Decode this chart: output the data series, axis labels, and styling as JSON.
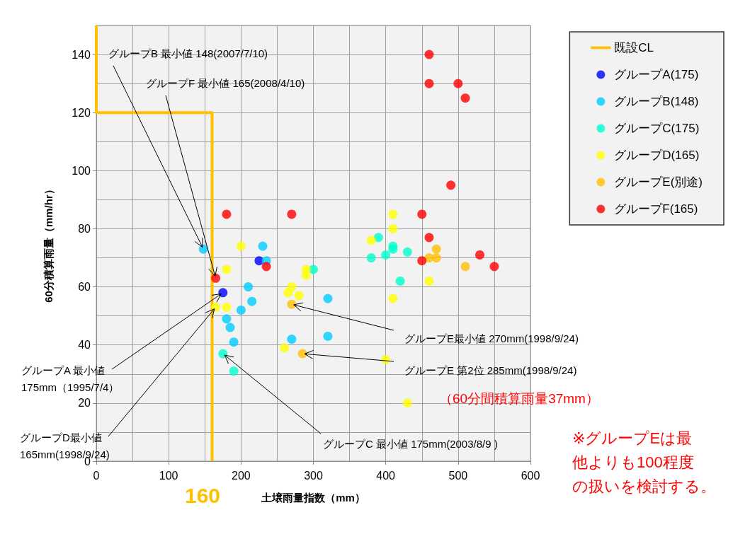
{
  "chart_data": {
    "type": "scatter",
    "xlabel": "土壌雨量指数（mm）",
    "ylabel": "60分積算雨量（mm/hr）",
    "xlim": [
      0,
      600
    ],
    "ylim": [
      0,
      150
    ],
    "xticks": [
      0,
      100,
      200,
      300,
      400,
      500,
      600
    ],
    "yticks": [
      0,
      20,
      40,
      60,
      80,
      100,
      120,
      140
    ],
    "grid": true,
    "legend": "right",
    "marker": "circle",
    "series": [
      {
        "name": "既設CL",
        "type": "line",
        "color": "#ffc000",
        "marker": "none",
        "line_style": "solid",
        "x": [
          0,
          0,
          160,
          160
        ],
        "values": [
          150,
          120,
          120,
          0
        ]
      },
      {
        "name": "グループA(175)",
        "color": "#0000ff",
        "x": [
          175,
          225
        ],
        "values": [
          58,
          69
        ]
      },
      {
        "name": "グループB(148)",
        "color": "#00ccff",
        "x": [
          148,
          230,
          235,
          210,
          215,
          200,
          180,
          185,
          190,
          270,
          320,
          320
        ],
        "values": [
          73,
          74,
          69,
          60,
          55,
          52,
          49,
          46,
          41,
          42,
          56,
          43
        ]
      },
      {
        "name": "グループC(175)",
        "color": "#00ffcc",
        "x": [
          175,
          190,
          300,
          390,
          380,
          400,
          410,
          410,
          430,
          420
        ],
        "values": [
          37,
          31,
          66,
          77,
          70,
          71,
          74,
          73,
          72,
          62
        ]
      },
      {
        "name": "グループD(165)",
        "color": "#ffff00",
        "x": [
          165,
          180,
          180,
          200,
          290,
          290,
          270,
          265,
          280,
          260,
          410,
          410,
          380,
          460,
          410,
          400,
          430
        ],
        "values": [
          53,
          66,
          53,
          74,
          66,
          64,
          60,
          58,
          57,
          39,
          85,
          80,
          76,
          62,
          56,
          35,
          20
        ]
      },
      {
        "name": "グループE(別途)",
        "color": "#ffc000",
        "x": [
          270,
          285,
          460,
          470,
          470,
          510
        ],
        "values": [
          54,
          37,
          70,
          73,
          70,
          67
        ]
      },
      {
        "name": "グループF(165)",
        "color": "#ff0000",
        "x": [
          165,
          180,
          270,
          235,
          460,
          460,
          500,
          510,
          490,
          450,
          460,
          450,
          530,
          550
        ],
        "values": [
          63,
          85,
          85,
          67,
          140,
          130,
          130,
          125,
          95,
          85,
          77,
          69,
          71,
          67
        ]
      }
    ],
    "annotations": [
      {
        "text": "グループB 最小値 148(2007/7/10)",
        "x": 148,
        "y": 73
      },
      {
        "text": "グループF 最小値 165(2008/4/10)",
        "x": 165,
        "y": 63
      },
      {
        "text": "グループE最小値 270mm(1998/9/24)",
        "x": 270,
        "y": 54
      },
      {
        "text": "グループE 第2位 285mm(1998/9/24)",
        "x": 285,
        "y": 37
      },
      {
        "text": "グループA 最小値\n175mm（1995/7/4）",
        "x": 175,
        "y": 58
      },
      {
        "text": "グループD最小値\n165mm(1998/9/24)",
        "x": 165,
        "y": 53
      },
      {
        "text": "グループC 最小値 175mm(2003/8/9 )",
        "x": 175,
        "y": 37
      },
      "（60分間積算雨量37mm）",
      "※グループEは最",
      "他よりも100程度",
      "の扱いを検討する。",
      "160"
    ]
  }
}
